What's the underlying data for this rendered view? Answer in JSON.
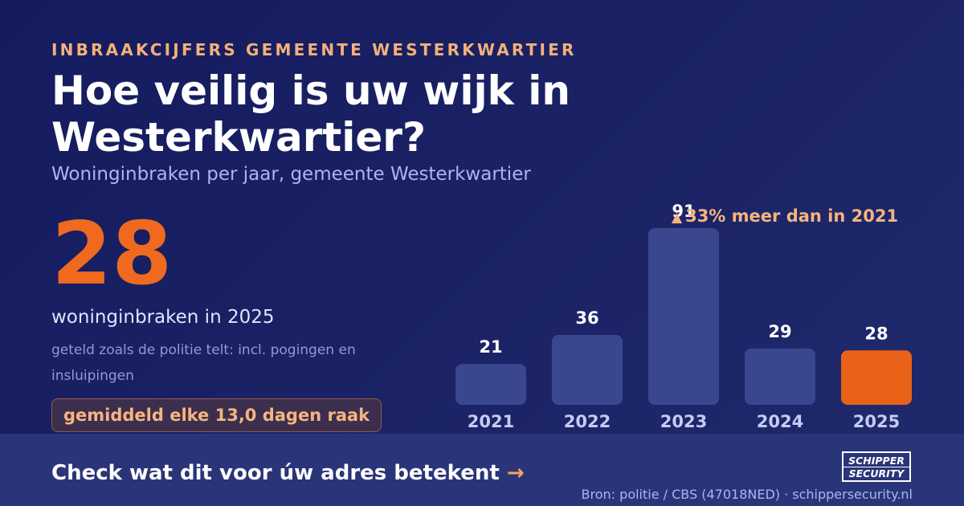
{
  "header": {
    "eyebrow": "INBRAAKCIJFERS GEMEENTE WESTERKWARTIER",
    "title": "Hoe veilig is uw wijk in Westerkwartier?",
    "subtitle": "Woninginbraken per jaar, gemeente Westerkwartier"
  },
  "highlight": {
    "value": "28",
    "caption": "woninginbraken in 2025",
    "note": "geteld zoals de politie telt: incl. pogingen en insluipingen",
    "frequency": "gemiddeld elke 13,0 dagen raak"
  },
  "delta": {
    "icon": "triangle-up-icon",
    "text": "33% meer dan in 2021"
  },
  "chart_data": {
    "type": "bar",
    "categories": [
      "2021",
      "2022",
      "2023",
      "2024",
      "2025"
    ],
    "values": [
      21,
      36,
      91,
      29,
      28
    ],
    "highlight_category": "2025",
    "title": "",
    "xlabel": "",
    "ylabel": "",
    "ylim": [
      0,
      91
    ],
    "grid": false,
    "colors": {
      "bar": "#3a478f",
      "highlight": "#ea6218",
      "label": "#ffffff",
      "tick": "#c3ccf5"
    }
  },
  "footer": {
    "cta": "Check wat dit voor úw adres betekent",
    "cta_arrow": "→",
    "source": "Bron: politie / CBS (47018NED) · schippersecurity.nl",
    "logo_line1": "SCHIPPER",
    "logo_line2": "SECURITY"
  }
}
